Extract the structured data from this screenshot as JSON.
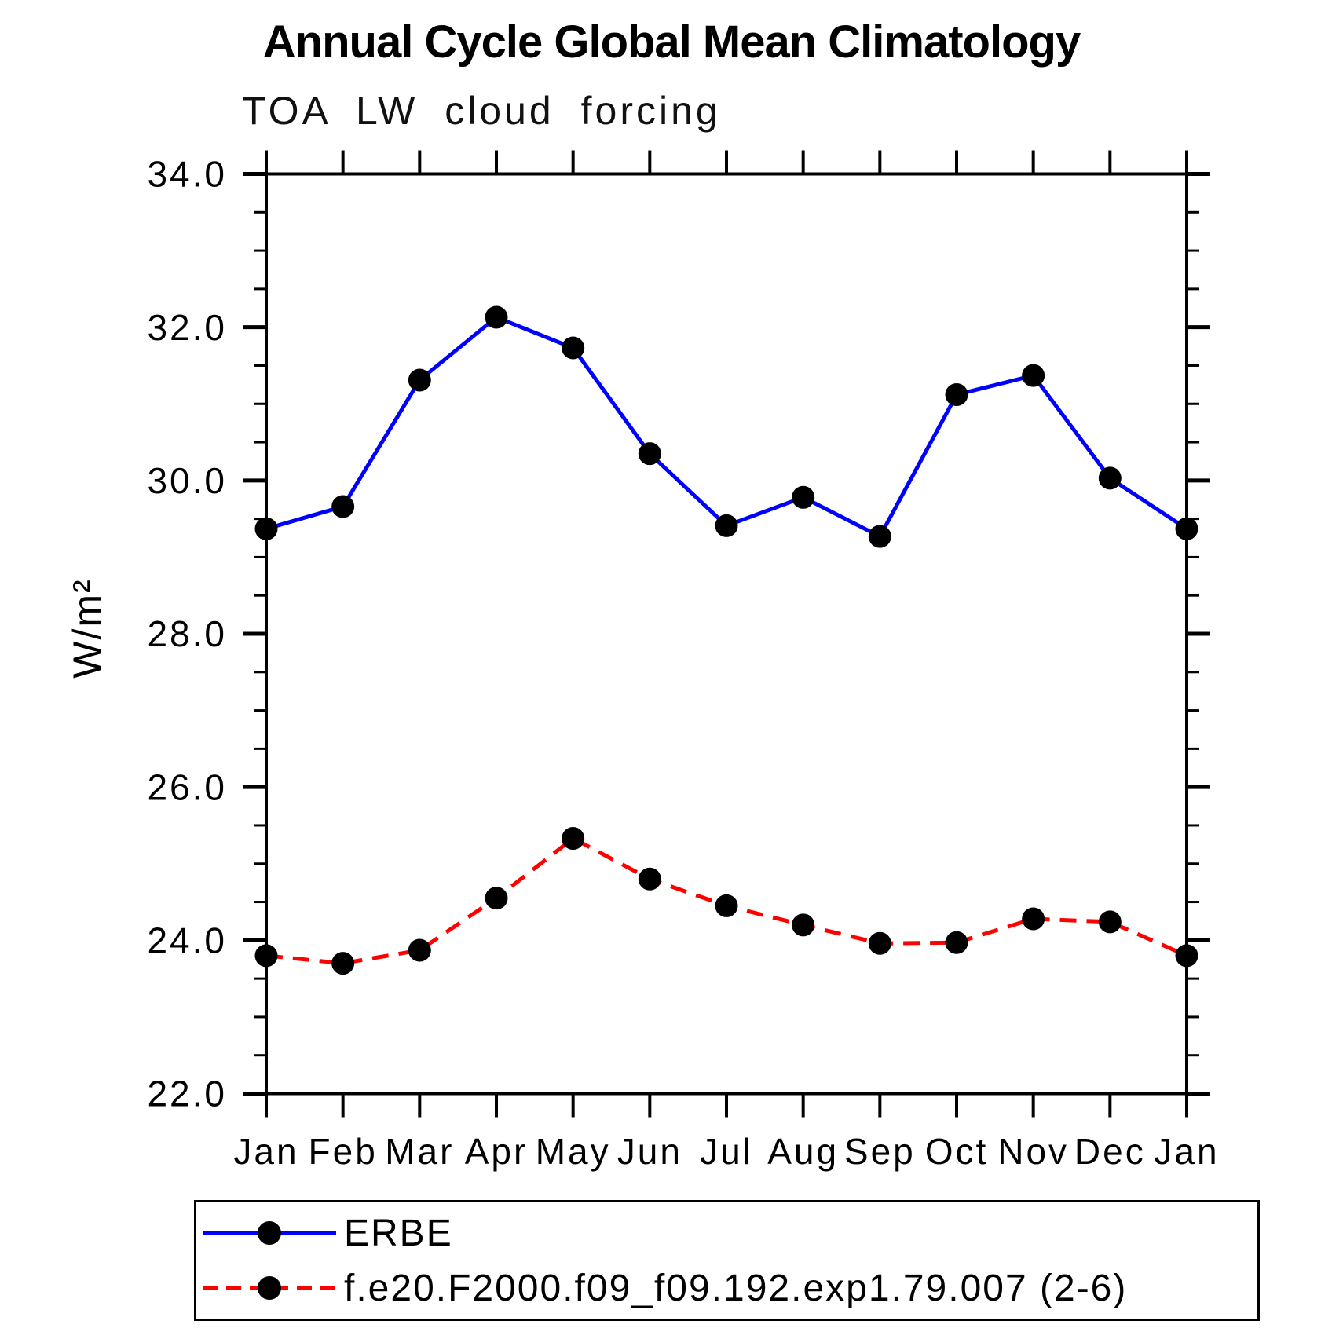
{
  "chart_data": {
    "type": "line",
    "title": "Annual Cycle Global Mean Climatology",
    "subtitle": "TOA LW cloud forcing",
    "ylabel": "W/m²",
    "ylim": [
      22.0,
      34.0
    ],
    "y_tick_step": 2.0,
    "y_minor_step": 0.5,
    "y_tick_labels": [
      "22.0",
      "24.0",
      "26.0",
      "28.0",
      "30.0",
      "32.0",
      "34.0"
    ],
    "categories": [
      "Jan",
      "Feb",
      "Mar",
      "Apr",
      "May",
      "Jun",
      "Jul",
      "Aug",
      "Sep",
      "Oct",
      "Nov",
      "Dec",
      "Jan"
    ],
    "grid": false,
    "legend_position": "bottom",
    "axis_color": "#000000",
    "series": [
      {
        "name": "ERBE",
        "color": "#0000ff",
        "style": "solid",
        "marker": "circle",
        "marker_color": "#000000",
        "values": [
          29.37,
          29.66,
          31.31,
          32.13,
          31.73,
          30.35,
          29.41,
          29.78,
          29.27,
          31.12,
          31.37,
          30.03,
          29.37
        ]
      },
      {
        "name": "f.e20.F2000.f09_f09.192.exp1.79.007 (2-6)",
        "color": "#ff0000",
        "style": "dashed",
        "marker": "circle",
        "marker_color": "#000000",
        "values": [
          23.8,
          23.7,
          23.87,
          24.55,
          25.33,
          24.8,
          24.45,
          24.2,
          23.96,
          23.97,
          24.28,
          24.24,
          23.8
        ]
      }
    ]
  }
}
